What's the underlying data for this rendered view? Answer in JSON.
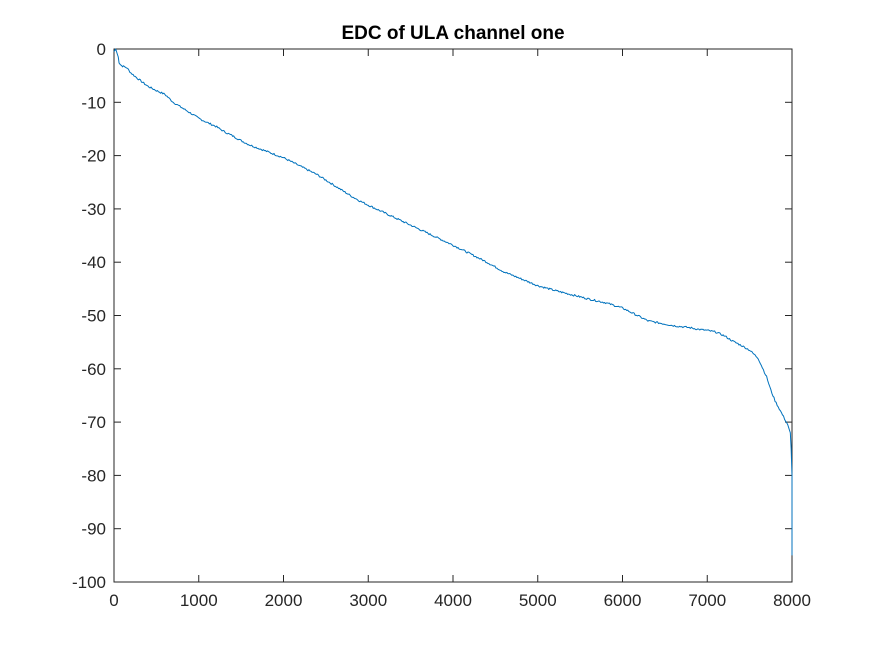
{
  "chart_data": {
    "type": "line",
    "title": "EDC of ULA channel one",
    "xlabel": "",
    "ylabel": "",
    "xlim": [
      0,
      8000
    ],
    "ylim": [
      -100,
      0
    ],
    "xticks": [
      0,
      1000,
      2000,
      3000,
      4000,
      5000,
      6000,
      7000,
      8000
    ],
    "yticks": [
      0,
      -10,
      -20,
      -30,
      -40,
      -50,
      -60,
      -70,
      -80,
      -90,
      -100
    ],
    "xtick_labels": [
      "0",
      "1000",
      "2000",
      "3000",
      "4000",
      "5000",
      "6000",
      "7000",
      "8000"
    ],
    "ytick_labels": [
      "0",
      "-10",
      "-20",
      "-30",
      "-40",
      "-50",
      "-60",
      "-70",
      "-80",
      "-90",
      "-100"
    ],
    "grid": false,
    "line_color": "#0072BD",
    "series": [
      {
        "x": [
          0,
          20,
          50,
          60,
          80,
          100,
          150,
          200,
          300,
          400,
          500,
          600,
          700,
          800,
          900,
          1000,
          1100,
          1200,
          1300,
          1400,
          1500,
          1600,
          1700,
          1800,
          1900,
          2000,
          2100,
          2200,
          2300,
          2400,
          2500,
          2600,
          2700,
          2800,
          2900,
          3000,
          3200,
          3400,
          3600,
          3800,
          4000,
          4200,
          4400,
          4600,
          4800,
          5000,
          5200,
          5400,
          5600,
          5800,
          6000,
          6100,
          6200,
          6300,
          6400,
          6500,
          6600,
          6700,
          6800,
          6900,
          7000,
          7100,
          7200,
          7300,
          7400,
          7500,
          7600,
          7700,
          7750,
          7800,
          7850,
          7900,
          7950,
          7980,
          7990,
          8000,
          8000
        ],
        "y": [
          -0.5,
          0,
          -1.5,
          -2.5,
          -3,
          -3.2,
          -3.5,
          -4.5,
          -5.8,
          -7,
          -7.8,
          -8.5,
          -10,
          -11,
          -12,
          -13,
          -13.8,
          -14.5,
          -15.5,
          -16.3,
          -17.2,
          -18,
          -18.6,
          -19.2,
          -19.8,
          -20.4,
          -21.2,
          -22,
          -22.8,
          -23.6,
          -24.6,
          -25.6,
          -26.6,
          -27.6,
          -28.5,
          -29.3,
          -30.8,
          -32.3,
          -33.8,
          -35.3,
          -36.8,
          -38.4,
          -40.0,
          -41.8,
          -43.1,
          -44.4,
          -45.3,
          -46.1,
          -46.9,
          -47.6,
          -48.6,
          -49.4,
          -50.2,
          -51.0,
          -51.3,
          -51.6,
          -51.9,
          -52.1,
          -52.3,
          -52.6,
          -52.8,
          -53.1,
          -53.8,
          -54.8,
          -55.6,
          -56.5,
          -58.0,
          -61.5,
          -64.0,
          -66.0,
          -67.5,
          -69.0,
          -70.5,
          -72.0,
          -75.0,
          -80.0,
          -95.0
        ]
      }
    ]
  }
}
